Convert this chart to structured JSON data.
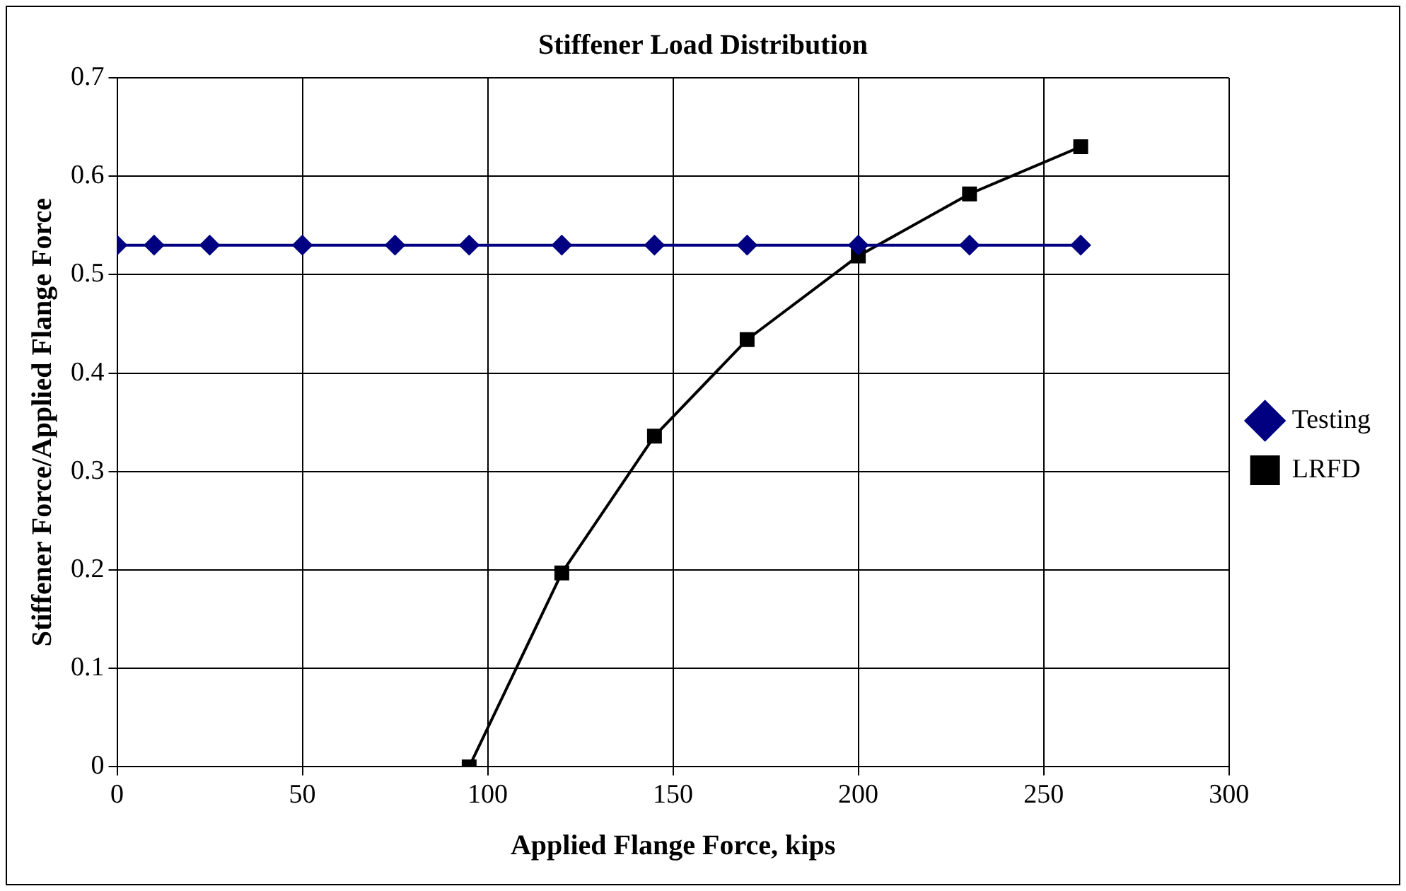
{
  "chart_data": {
    "type": "line",
    "title": "Stiffener Load Distribution",
    "xlabel": "Applied Flange Force, kips",
    "ylabel": "Stiffener Force/Applied Flange Force",
    "xlim": [
      0,
      300
    ],
    "xticks": [
      0,
      50,
      100,
      150,
      200,
      250,
      300
    ],
    "ylim": [
      0,
      0.7
    ],
    "yticks": [
      0,
      0.1,
      0.2,
      0.3,
      0.4,
      0.5,
      0.6,
      0.7
    ],
    "grid": true,
    "legend": "right",
    "series": [
      {
        "name": "Testing",
        "color": "#000080",
        "marker": "diamond",
        "x": [
          0,
          10,
          25,
          50,
          75,
          95,
          120,
          145,
          170,
          200,
          230,
          260
        ],
        "values": [
          0.53,
          0.53,
          0.53,
          0.53,
          0.53,
          0.53,
          0.53,
          0.53,
          0.53,
          0.53,
          0.53,
          0.53
        ]
      },
      {
        "name": "LRFD",
        "color": "#000000",
        "marker": "square",
        "x": [
          95,
          120,
          145,
          170,
          200,
          230,
          260
        ],
        "values": [
          0,
          0.197,
          0.336,
          0.434,
          0.519,
          0.582,
          0.63
        ]
      }
    ]
  }
}
